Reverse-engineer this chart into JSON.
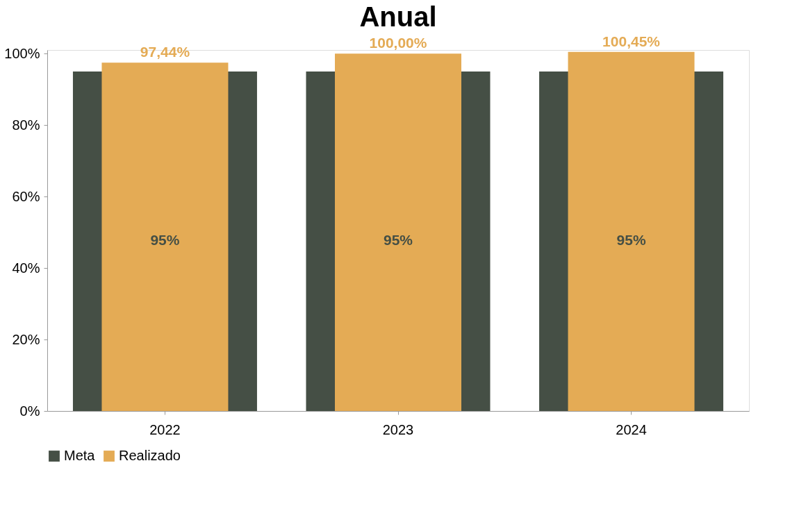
{
  "chart_data": {
    "type": "bar",
    "title": "Anual",
    "categories": [
      "2022",
      "2023",
      "2024"
    ],
    "series": [
      {
        "name": "Meta",
        "color": "#454f45",
        "values": [
          95,
          95,
          95
        ],
        "value_labels": [
          "95%",
          "95%",
          "95%"
        ]
      },
      {
        "name": "Realizado",
        "color": "#e4ab55",
        "values": [
          97.44,
          100.0,
          100.45
        ],
        "value_labels": [
          "97,44%",
          "100,00%",
          "100,45%"
        ]
      }
    ],
    "ylim": [
      0,
      101
    ],
    "yticks": [
      {
        "value": 0,
        "label": "0%"
      },
      {
        "value": 20,
        "label": "20%"
      },
      {
        "value": 40,
        "label": "40%"
      },
      {
        "value": 60,
        "label": "60%"
      },
      {
        "value": 80,
        "label": "80%"
      },
      {
        "value": 100,
        "label": "100%"
      }
    ],
    "grid": false,
    "legend": "bottom"
  }
}
